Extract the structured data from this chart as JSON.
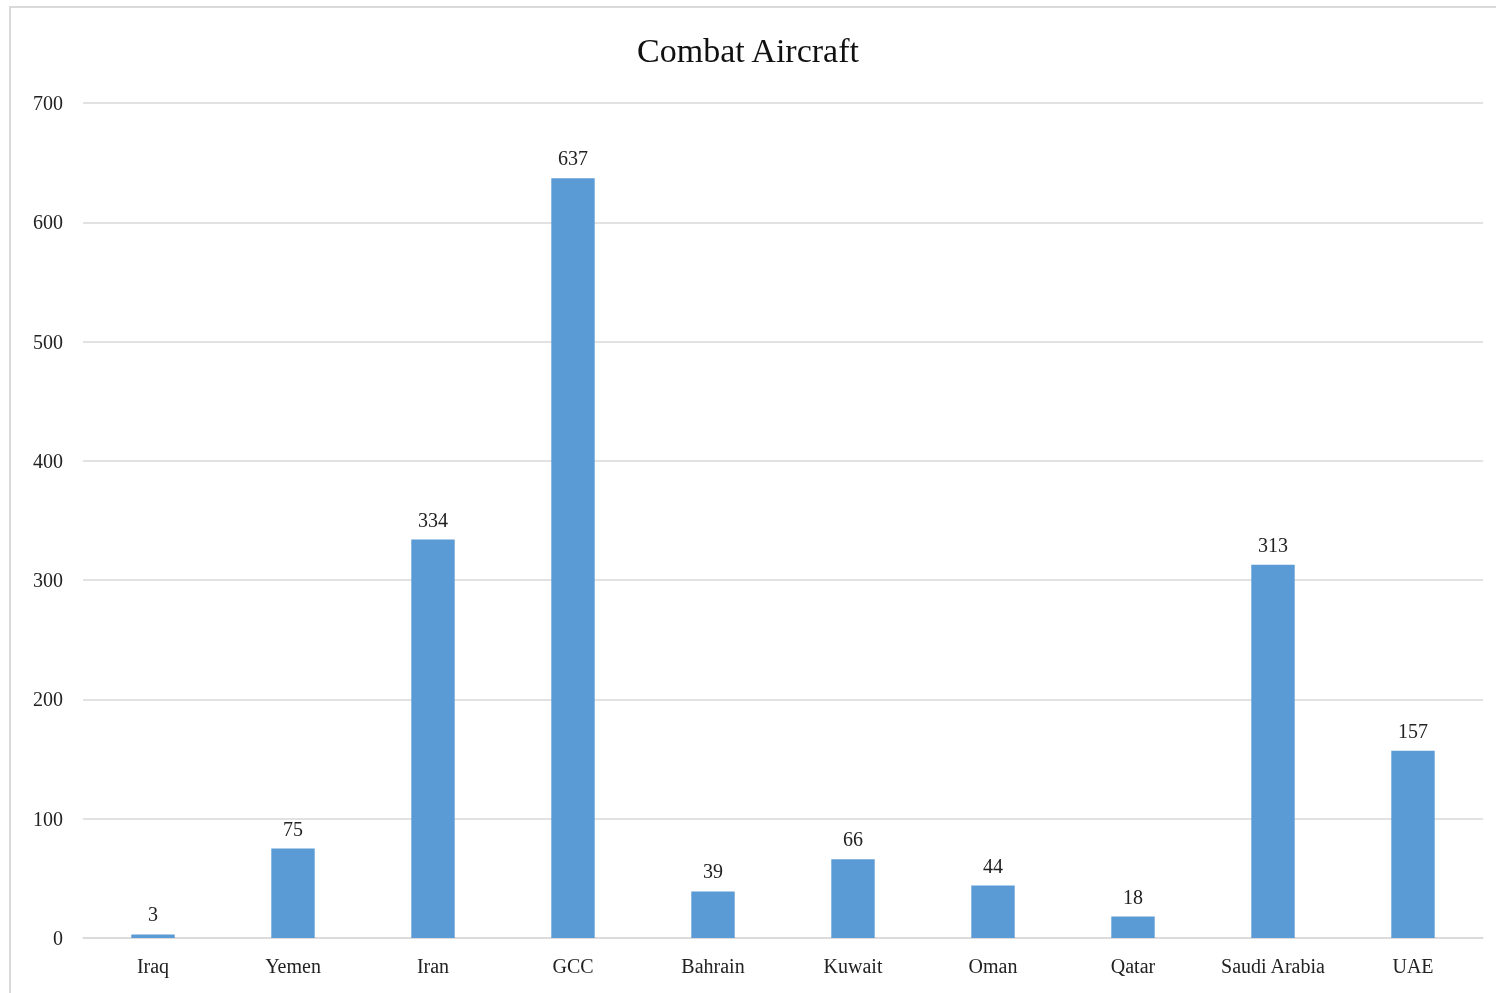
{
  "chart_data": {
    "type": "bar",
    "title": "Combat Aircraft",
    "categories": [
      "Iraq",
      "Yemen",
      "Iran",
      "GCC",
      "Bahrain",
      "Kuwait",
      "Oman",
      "Qatar",
      "Saudi Arabia",
      "UAE"
    ],
    "values": [
      3,
      75,
      334,
      637,
      39,
      66,
      44,
      18,
      313,
      157
    ],
    "color": "#5b9bd5",
    "ylim": [
      0,
      700
    ],
    "yticks": [
      0,
      100,
      200,
      300,
      400,
      500,
      600,
      700
    ],
    "grid": "y",
    "data_labels": true
  }
}
